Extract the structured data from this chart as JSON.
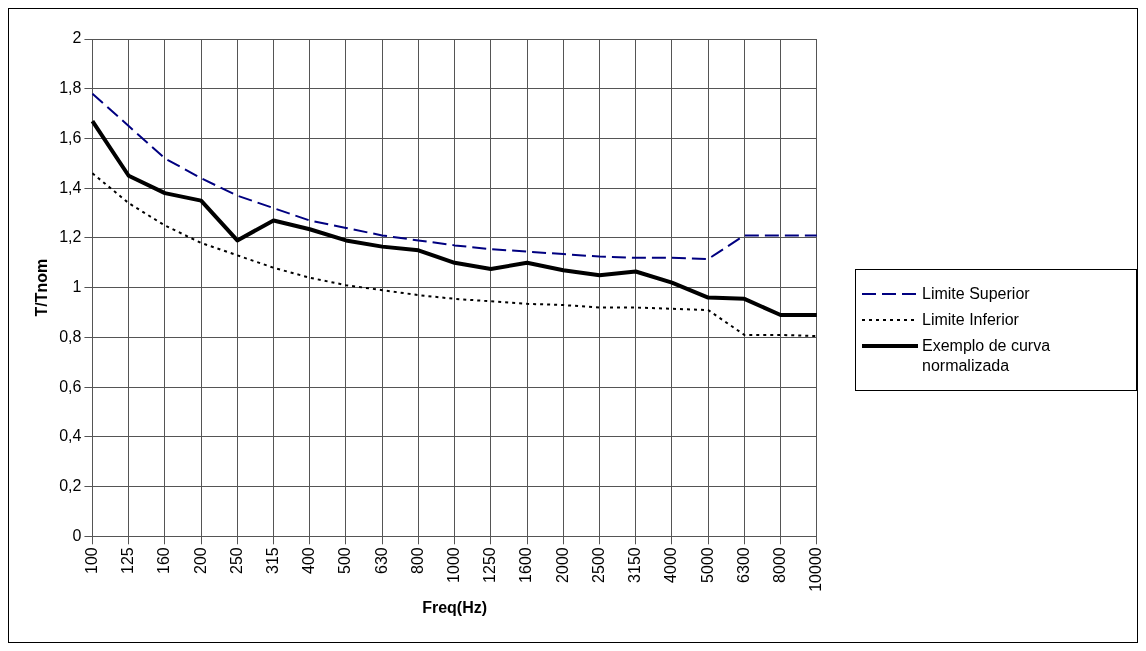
{
  "chart_data": {
    "type": "line",
    "xlabel": "Freq(Hz)",
    "ylabel": "T/Tnom",
    "categories": [
      "100",
      "125",
      "160",
      "200",
      "250",
      "315",
      "400",
      "500",
      "630",
      "800",
      "1000",
      "1250",
      "1600",
      "2000",
      "2500",
      "3150",
      "4000",
      "5000",
      "6300",
      "8000",
      "10000"
    ],
    "series": [
      {
        "name": "Limite Superior",
        "color": "#000080",
        "line_style": "dashed",
        "values": [
          1.78,
          1.65,
          1.52,
          1.44,
          1.37,
          1.32,
          1.27,
          1.24,
          1.21,
          1.19,
          1.17,
          1.155,
          1.145,
          1.135,
          1.125,
          1.12,
          1.12,
          1.115,
          1.21,
          1.21,
          1.21
        ]
      },
      {
        "name": "Limite Inferior",
        "color": "#000000",
        "line_style": "dotted",
        "values": [
          1.46,
          1.34,
          1.25,
          1.18,
          1.13,
          1.08,
          1.04,
          1.01,
          0.99,
          0.97,
          0.955,
          0.945,
          0.935,
          0.93,
          0.92,
          0.92,
          0.915,
          0.91,
          0.81,
          0.81,
          0.805
        ]
      },
      {
        "name": "Exemplo de curva normalizada",
        "color": "#000000",
        "line_style": "solid",
        "values": [
          1.67,
          1.45,
          1.38,
          1.35,
          1.19,
          1.27,
          1.235,
          1.19,
          1.165,
          1.15,
          1.1,
          1.075,
          1.1,
          1.07,
          1.05,
          1.065,
          1.02,
          0.96,
          0.955,
          0.89,
          0.89
        ]
      }
    ],
    "ylim": [
      0,
      2
    ],
    "yticks": [
      0,
      {
        "value": 0.2,
        "label": "0,2"
      },
      {
        "value": 0.4,
        "label": "0,4"
      },
      {
        "value": 0.6,
        "label": "0,6"
      },
      {
        "value": 0.8,
        "label": "0,8"
      },
      1,
      {
        "value": 1.2,
        "label": "1,2"
      },
      {
        "value": 1.4,
        "label": "1,4"
      },
      {
        "value": 1.6,
        "label": "1,6"
      },
      {
        "value": 1.8,
        "label": "1,8"
      },
      2
    ],
    "grid": true,
    "legend": "right",
    "marker": "none"
  }
}
